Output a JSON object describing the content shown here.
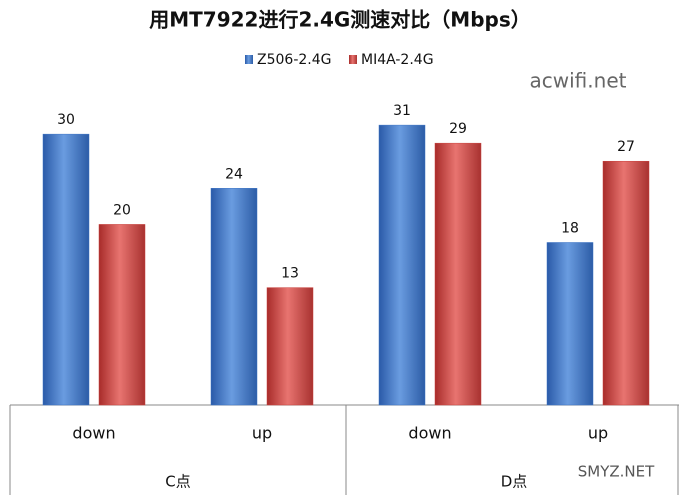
{
  "chart_data": {
    "type": "bar",
    "title": "用MT7922进行2.4G测速对比（Mbps）",
    "categories": [
      "down",
      "up",
      "down",
      "up"
    ],
    "groups": [
      {
        "label": "C点",
        "span": 2
      },
      {
        "label": "D点",
        "span": 2
      }
    ],
    "series": [
      {
        "name": "Z506-2.4G",
        "color": "#3a72c4",
        "values": [
          30,
          24,
          31,
          18
        ]
      },
      {
        "name": "MI4A-2.4G",
        "color": "#c8403c",
        "values": [
          20,
          13,
          29,
          27
        ]
      }
    ],
    "ylim": [
      0,
      35
    ],
    "legend": "top",
    "watermarks": [
      "acwifi.net",
      "SMYZ.NET"
    ]
  }
}
